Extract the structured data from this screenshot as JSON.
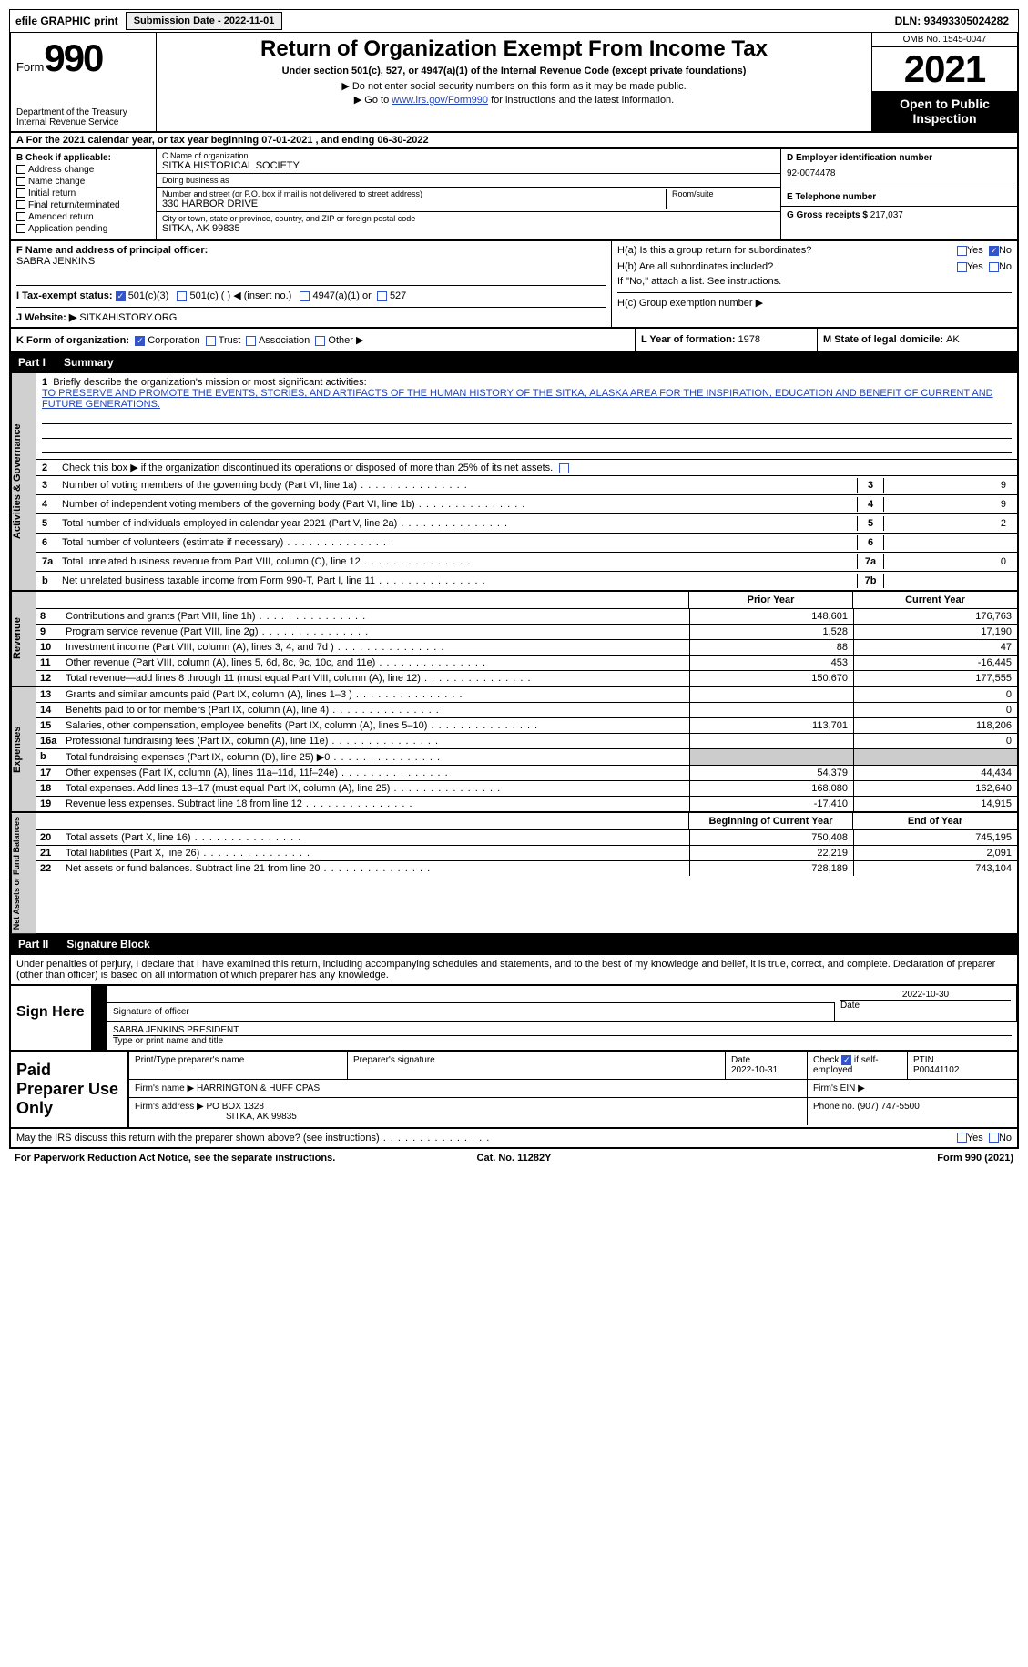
{
  "topbar": {
    "efile": "efile GRAPHIC print",
    "subdate_label": "Submission Date - ",
    "subdate": "2022-11-01",
    "dln_label": "DLN: ",
    "dln": "93493305024282"
  },
  "header": {
    "form_label": "Form",
    "form_num": "990",
    "dept": "Department of the Treasury",
    "irs": "Internal Revenue Service",
    "title": "Return of Organization Exempt From Income Tax",
    "subtitle": "Under section 501(c), 527, or 4947(a)(1) of the Internal Revenue Code (except private foundations)",
    "note1_prefix": "▶ Do not enter social security numbers on this form as it may be made public.",
    "note2_prefix": "▶ Go to ",
    "note2_link": "www.irs.gov/Form990",
    "note2_suffix": " for instructions and the latest information.",
    "omb": "OMB No. 1545-0047",
    "year": "2021",
    "open": "Open to Public Inspection"
  },
  "section_a": {
    "text_a": "A For the 2021 calendar year, or tax year beginning ",
    "begin": "07-01-2021",
    "text_b": "  , and ending ",
    "end": "06-30-2022"
  },
  "col_b": {
    "header": "B Check if applicable:",
    "items": [
      "Address change",
      "Name change",
      "Initial return",
      "Final return/terminated",
      "Amended return",
      "Application pending"
    ]
  },
  "col_c": {
    "name_label": "C Name of organization",
    "name": "SITKA HISTORICAL SOCIETY",
    "dba_label": "Doing business as",
    "dba": "",
    "street_label": "Number and street (or P.O. box if mail is not delivered to street address)",
    "room_label": "Room/suite",
    "street": "330 HARBOR DRIVE",
    "city_label": "City or town, state or province, country, and ZIP or foreign postal code",
    "city": "SITKA, AK  99835"
  },
  "col_d": {
    "ein_label": "D Employer identification number",
    "ein": "92-0074478",
    "tel_label": "E Telephone number",
    "tel": "",
    "gross_label": "G Gross receipts $ ",
    "gross": "217,037"
  },
  "section_f": {
    "label": "F  Name and address of principal officer:",
    "name": "SABRA JENKINS"
  },
  "section_h": {
    "ha_label": "H(a)  Is this a group return for subordinates?",
    "hb_label": "H(b)  Are all subordinates included?",
    "hb_note": "If \"No,\" attach a list. See instructions.",
    "hc_label": "H(c)  Group exemption number ▶",
    "yes": "Yes",
    "no": "No"
  },
  "section_i": {
    "label": "I   Tax-exempt status:",
    "opt1": "501(c)(3)",
    "opt2": "501(c) (  ) ◀ (insert no.)",
    "opt3": "4947(a)(1) or",
    "opt4": "527"
  },
  "section_j": {
    "label": "J  Website: ▶",
    "val": "SITKAHISTORY.ORG"
  },
  "section_k": {
    "label": "K Form of organization:",
    "corp": "Corporation",
    "trust": "Trust",
    "assoc": "Association",
    "other": "Other ▶",
    "l_label": "L Year of formation: ",
    "l_val": "1978",
    "m_label": "M State of legal domicile: ",
    "m_val": "AK"
  },
  "part1": {
    "header_part": "Part I",
    "header_title": "Summary",
    "side_activities": "Activities & Governance",
    "line1_label": "Briefly describe the organization's mission or most significant activities:",
    "line1_text": "TO PRESERVE AND PROMOTE THE EVENTS, STORIES, AND ARTIFACTS OF THE HUMAN HISTORY OF THE SITKA, ALASKA AREA FOR THE INSPIRATION, EDUCATION AND BENEFIT OF CURRENT AND FUTURE GENERATIONS.",
    "line2": "Check this box ▶    if the organization discontinued its operations or disposed of more than 25% of its net assets.",
    "rows_ag": [
      {
        "n": "3",
        "t": "Number of voting members of the governing body (Part VI, line 1a)",
        "box": "3",
        "v": "9"
      },
      {
        "n": "4",
        "t": "Number of independent voting members of the governing body (Part VI, line 1b)",
        "box": "4",
        "v": "9"
      },
      {
        "n": "5",
        "t": "Total number of individuals employed in calendar year 2021 (Part V, line 2a)",
        "box": "5",
        "v": "2"
      },
      {
        "n": "6",
        "t": "Total number of volunteers (estimate if necessary)",
        "box": "6",
        "v": ""
      },
      {
        "n": "7a",
        "t": "Total unrelated business revenue from Part VIII, column (C), line 12",
        "box": "7a",
        "v": "0"
      },
      {
        "n": "b",
        "t": "Net unrelated business taxable income from Form 990-T, Part I, line 11",
        "box": "7b",
        "v": ""
      }
    ],
    "side_revenue": "Revenue",
    "prior_hdr": "Prior Year",
    "current_hdr": "Current Year",
    "rows_rev": [
      {
        "n": "8",
        "t": "Contributions and grants (Part VIII, line 1h)",
        "p": "148,601",
        "c": "176,763"
      },
      {
        "n": "9",
        "t": "Program service revenue (Part VIII, line 2g)",
        "p": "1,528",
        "c": "17,190"
      },
      {
        "n": "10",
        "t": "Investment income (Part VIII, column (A), lines 3, 4, and 7d )",
        "p": "88",
        "c": "47"
      },
      {
        "n": "11",
        "t": "Other revenue (Part VIII, column (A), lines 5, 6d, 8c, 9c, 10c, and 11e)",
        "p": "453",
        "c": "-16,445"
      },
      {
        "n": "12",
        "t": "Total revenue—add lines 8 through 11 (must equal Part VIII, column (A), line 12)",
        "p": "150,670",
        "c": "177,555"
      }
    ],
    "side_expenses": "Expenses",
    "rows_exp": [
      {
        "n": "13",
        "t": "Grants and similar amounts paid (Part IX, column (A), lines 1–3 )",
        "p": "",
        "c": "0"
      },
      {
        "n": "14",
        "t": "Benefits paid to or for members (Part IX, column (A), line 4)",
        "p": "",
        "c": "0"
      },
      {
        "n": "15",
        "t": "Salaries, other compensation, employee benefits (Part IX, column (A), lines 5–10)",
        "p": "113,701",
        "c": "118,206"
      },
      {
        "n": "16a",
        "t": "Professional fundraising fees (Part IX, column (A), line 11e)",
        "p": "",
        "c": "0"
      },
      {
        "n": "b",
        "t": "Total fundraising expenses (Part IX, column (D), line 25) ▶0",
        "p": "shade",
        "c": "shade"
      },
      {
        "n": "17",
        "t": "Other expenses (Part IX, column (A), lines 11a–11d, 11f–24e)",
        "p": "54,379",
        "c": "44,434"
      },
      {
        "n": "18",
        "t": "Total expenses. Add lines 13–17 (must equal Part IX, column (A), line 25)",
        "p": "168,080",
        "c": "162,640"
      },
      {
        "n": "19",
        "t": "Revenue less expenses. Subtract line 18 from line 12",
        "p": "-17,410",
        "c": "14,915"
      }
    ],
    "side_net": "Net Assets or Fund Balances",
    "begin_hdr": "Beginning of Current Year",
    "end_hdr": "End of Year",
    "rows_net": [
      {
        "n": "20",
        "t": "Total assets (Part X, line 16)",
        "p": "750,408",
        "c": "745,195"
      },
      {
        "n": "21",
        "t": "Total liabilities (Part X, line 26)",
        "p": "22,219",
        "c": "2,091"
      },
      {
        "n": "22",
        "t": "Net assets or fund balances. Subtract line 21 from line 20",
        "p": "728,189",
        "c": "743,104"
      }
    ]
  },
  "part2": {
    "header_part": "Part II",
    "header_title": "Signature Block",
    "declaration": "Under penalties of perjury, I declare that I have examined this return, including accompanying schedules and statements, and to the best of my knowledge and belief, it is true, correct, and complete. Declaration of preparer (other than officer) is based on all information of which preparer has any knowledge.",
    "sign_here": "Sign Here",
    "sig_officer": "Signature of officer",
    "sig_date": "2022-10-30",
    "date_label": "Date",
    "name_title": "SABRA JENKINS  PRESIDENT",
    "name_label": "Type or print name and title",
    "paid_prep": "Paid Preparer Use Only",
    "prep_name_label": "Print/Type preparer's name",
    "prep_name": "",
    "prep_sig_label": "Preparer's signature",
    "prep_date_label": "Date",
    "prep_date": "2022-10-31",
    "check_if": "Check",
    "check_if2": "if self-employed",
    "ptin_label": "PTIN",
    "ptin": "P00441102",
    "firm_name_label": "Firm's name    ▶",
    "firm_name": "HARRINGTON & HUFF CPAS",
    "firm_ein_label": "Firm's EIN ▶",
    "firm_ein": "",
    "firm_addr_label": "Firm's address ▶",
    "firm_addr": "PO BOX 1328",
    "firm_addr2": "SITKA, AK  99835",
    "phone_label": "Phone no. ",
    "phone": "(907) 747-5500",
    "may_irs": "May the IRS discuss this return with the preparer shown above? (see instructions)",
    "footer_l": "For Paperwork Reduction Act Notice, see the separate instructions.",
    "footer_m": "Cat. No. 11282Y",
    "footer_r": "Form 990 (2021)"
  }
}
